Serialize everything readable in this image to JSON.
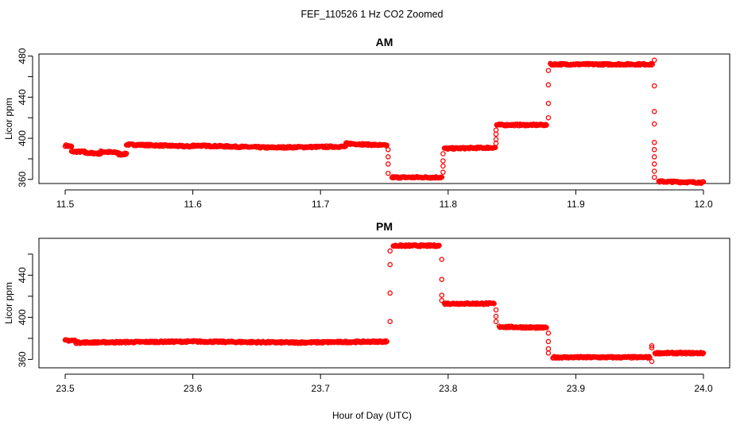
{
  "title": "FEF_110526  1 Hz CO2 Zoomed",
  "xlabel": "Hour of Day (UTC)",
  "colors": {
    "points": "#ff0000",
    "axis": "#000000"
  },
  "chart_data": [
    {
      "type": "scatter",
      "title": "AM",
      "xlabel": "",
      "ylabel": "Licor ppm",
      "xlim": [
        11.5,
        12.0
      ],
      "ylim": [
        356,
        482
      ],
      "xticks": [
        "11.5",
        "11.6",
        "11.7",
        "11.8",
        "11.9",
        "12.0"
      ],
      "yticks": [
        "360",
        "400",
        "440",
        "480"
      ],
      "series": [
        {
          "marker": "open-circle",
          "segments": [
            {
              "x": [
                11.5,
                11.505
              ],
              "y": [
                393,
                392
              ]
            },
            {
              "x": [
                11.505,
                11.515
              ],
              "y": [
                387,
                387
              ]
            },
            {
              "x": [
                11.515,
                11.528
              ],
              "y": [
                386,
                385
              ]
            },
            {
              "x": [
                11.528,
                11.542
              ],
              "y": [
                387,
                386
              ]
            },
            {
              "x": [
                11.542,
                11.548
              ],
              "y": [
                384,
                385
              ]
            },
            {
              "x": [
                11.548,
                11.6
              ],
              "y": [
                394,
                392
              ]
            },
            {
              "x": [
                11.6,
                11.66
              ],
              "y": [
                393,
                391
              ]
            },
            {
              "x": [
                11.66,
                11.72
              ],
              "y": [
                391,
                392
              ]
            },
            {
              "x": [
                11.72,
                11.752
              ],
              "y": [
                395,
                393
              ]
            },
            {
              "x": [
                11.756,
                11.795
              ],
              "y": [
                362,
                362
              ]
            },
            {
              "x": [
                11.797,
                11.837
              ],
              "y": [
                390,
                391
              ]
            },
            {
              "x": [
                11.838,
                11.877
              ],
              "y": [
                413,
                413
              ]
            },
            {
              "x": [
                11.88,
                11.96
              ],
              "y": [
                472,
                472
              ]
            },
            {
              "x": [
                11.965,
                12.0
              ],
              "y": [
                358,
                357
              ]
            }
          ],
          "transitions": [
            {
              "x": 11.753,
              "y": [
                389,
                382,
                375,
                366
              ]
            },
            {
              "x": 11.796,
              "y": [
                367,
                373,
                378,
                385
              ]
            },
            {
              "x": 11.8375,
              "y": [
                395,
                399,
                404,
                408
              ]
            },
            {
              "x": 11.8785,
              "y": [
                420,
                434,
                452,
                466
              ]
            },
            {
              "x": 11.9615,
              "y": [
                476,
                451,
                426,
                414,
                396,
                389,
                382,
                375,
                368,
                362
              ]
            }
          ]
        }
      ]
    },
    {
      "type": "scatter",
      "title": "PM",
      "xlabel": "",
      "ylabel": "Licor ppm",
      "xlim": [
        23.5,
        24.0
      ],
      "ylim": [
        352,
        475
      ],
      "xticks": [
        "23.5",
        "23.6",
        "23.7",
        "23.8",
        "23.9",
        "24.0"
      ],
      "yticks": [
        "360",
        "400",
        "440"
      ],
      "series": [
        {
          "marker": "open-circle",
          "segments": [
            {
              "x": [
                23.5,
                23.508
              ],
              "y": [
                378,
                378
              ]
            },
            {
              "x": [
                23.508,
                23.6
              ],
              "y": [
                376,
                377
              ]
            },
            {
              "x": [
                23.6,
                23.68
              ],
              "y": [
                377,
                376
              ]
            },
            {
              "x": [
                23.68,
                23.752
              ],
              "y": [
                376,
                377
              ]
            },
            {
              "x": [
                23.757,
                23.793
              ],
              "y": [
                468,
                468
              ]
            },
            {
              "x": [
                23.797,
                23.836
              ],
              "y": [
                413,
                413
              ]
            },
            {
              "x": [
                23.84,
                23.877
              ],
              "y": [
                391,
                390
              ]
            },
            {
              "x": [
                23.882,
                23.958
              ],
              "y": [
                362,
                362
              ]
            },
            {
              "x": [
                23.962,
                24.0
              ],
              "y": [
                366,
                366
              ]
            }
          ],
          "transitions": [
            {
              "x": 23.7545,
              "y": [
                396,
                423,
                450,
                463
              ]
            },
            {
              "x": 23.795,
              "y": [
                455,
                436,
                421,
                416
              ]
            },
            {
              "x": 23.8375,
              "y": [
                407,
                401,
                396
              ]
            },
            {
              "x": 23.8785,
              "y": [
                385,
                377,
                370,
                366
              ]
            },
            {
              "x": 23.9595,
              "y": [
                358,
                371,
                373
              ]
            }
          ]
        }
      ]
    }
  ]
}
